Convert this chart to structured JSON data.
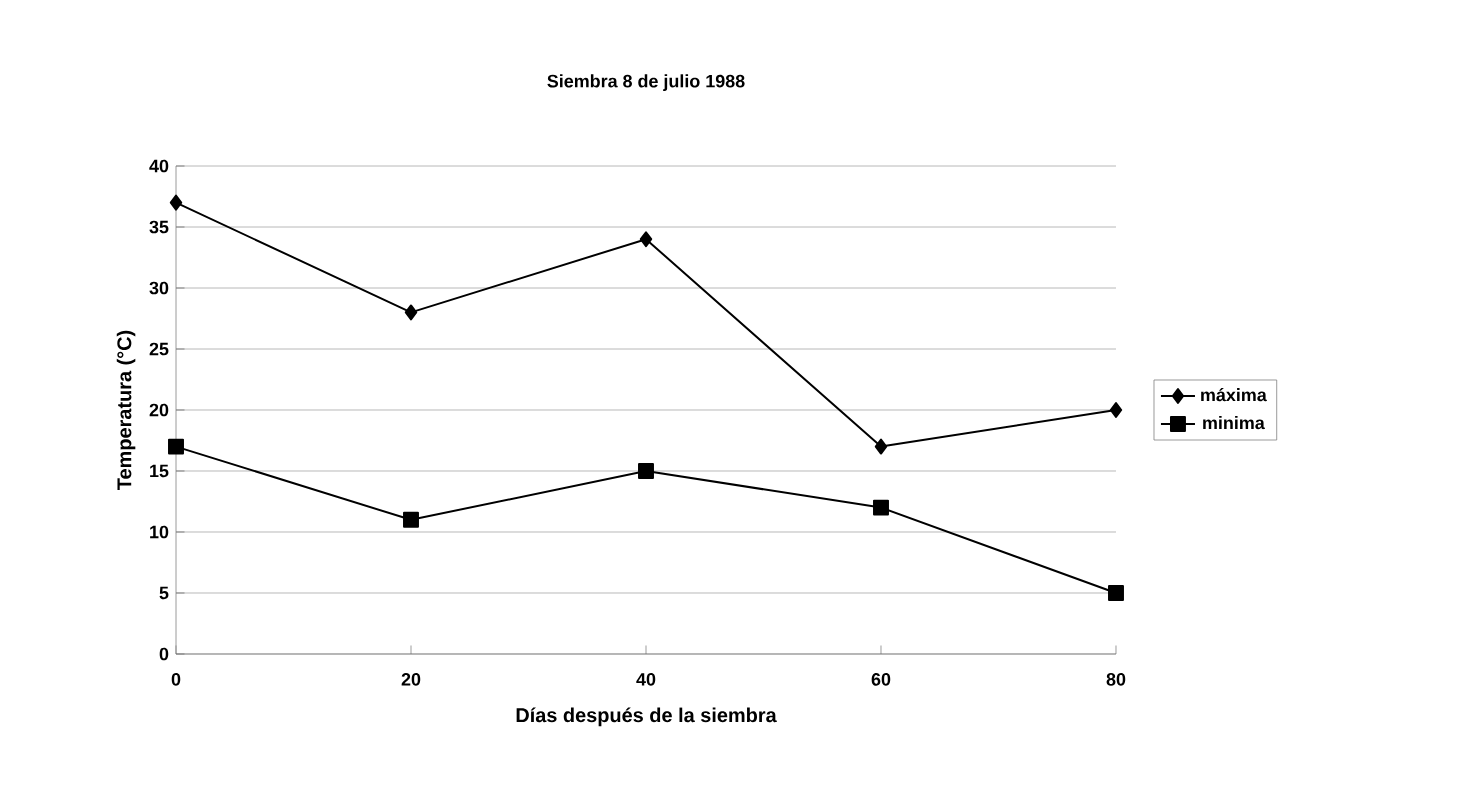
{
  "chart_data": {
    "type": "line",
    "title": "Siembra 8 de julio 1988",
    "xlabel": "Días después de la siembra",
    "ylabel": "Temperatura (°C)",
    "x": [
      0,
      20,
      40,
      60,
      80
    ],
    "series": [
      {
        "name": "máxima",
        "color": "#000000",
        "marker": "diamond",
        "values": [
          37,
          28,
          34,
          17,
          20
        ]
      },
      {
        "name": "minima",
        "color": "#000000",
        "marker": "square",
        "values": [
          17,
          11,
          15,
          12,
          5
        ]
      }
    ],
    "xlim": [
      0,
      80
    ],
    "xticks": [
      0,
      20,
      40,
      60,
      80
    ],
    "ylim": [
      0,
      40
    ],
    "yticks": [
      0,
      5,
      10,
      15,
      20,
      25,
      30,
      35,
      40
    ],
    "grid": "y",
    "legend": "right",
    "line_style": "solid"
  }
}
